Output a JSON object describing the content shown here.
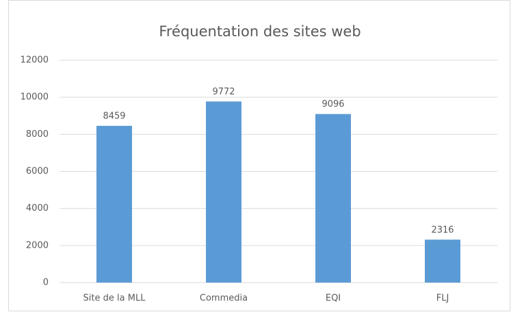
{
  "chart_data": {
    "type": "bar",
    "title": "Fréquentation des sites web",
    "categories": [
      "Site de la MLL",
      "Commedia",
      "EQI",
      "FLJ"
    ],
    "values": [
      8459,
      9772,
      9096,
      2316
    ],
    "color": "#5b9bd5",
    "ylim": [
      0,
      12000
    ],
    "yticks": [
      0,
      2000,
      4000,
      6000,
      8000,
      10000,
      12000
    ],
    "grid": true
  }
}
